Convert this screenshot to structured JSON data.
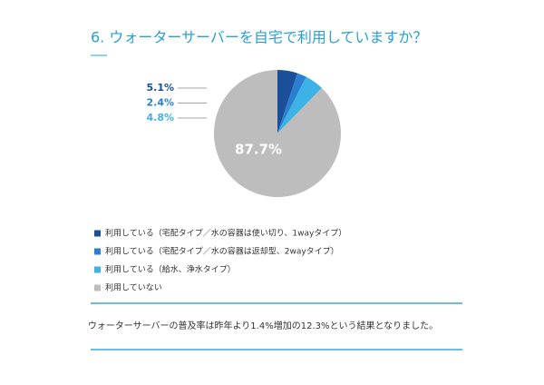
{
  "chart_data": {
    "type": "pie",
    "title": "6. ウォーターサーバーを自宅で利用していますか？",
    "categories": [
      "利用している（宅配タイプ／水の容器は使い切り、1wayタイプ）",
      "利用している（宅配タイプ／水の容器は返却型、2wayタイプ）",
      "利用している（給水、浄水タイプ）",
      "利用していない"
    ],
    "values": [
      5.1,
      2.4,
      4.8,
      87.7
    ],
    "value_labels": [
      "5.1%",
      "2.4%",
      "4.8%",
      "87.7%"
    ],
    "colors": [
      "#1c4f9a",
      "#2a7fcf",
      "#3db2e6",
      "#bdbdbd"
    ]
  },
  "note": "ウォーターサーバーの普及率は昨年より1.4%増加の12.3%という結果となりました。"
}
